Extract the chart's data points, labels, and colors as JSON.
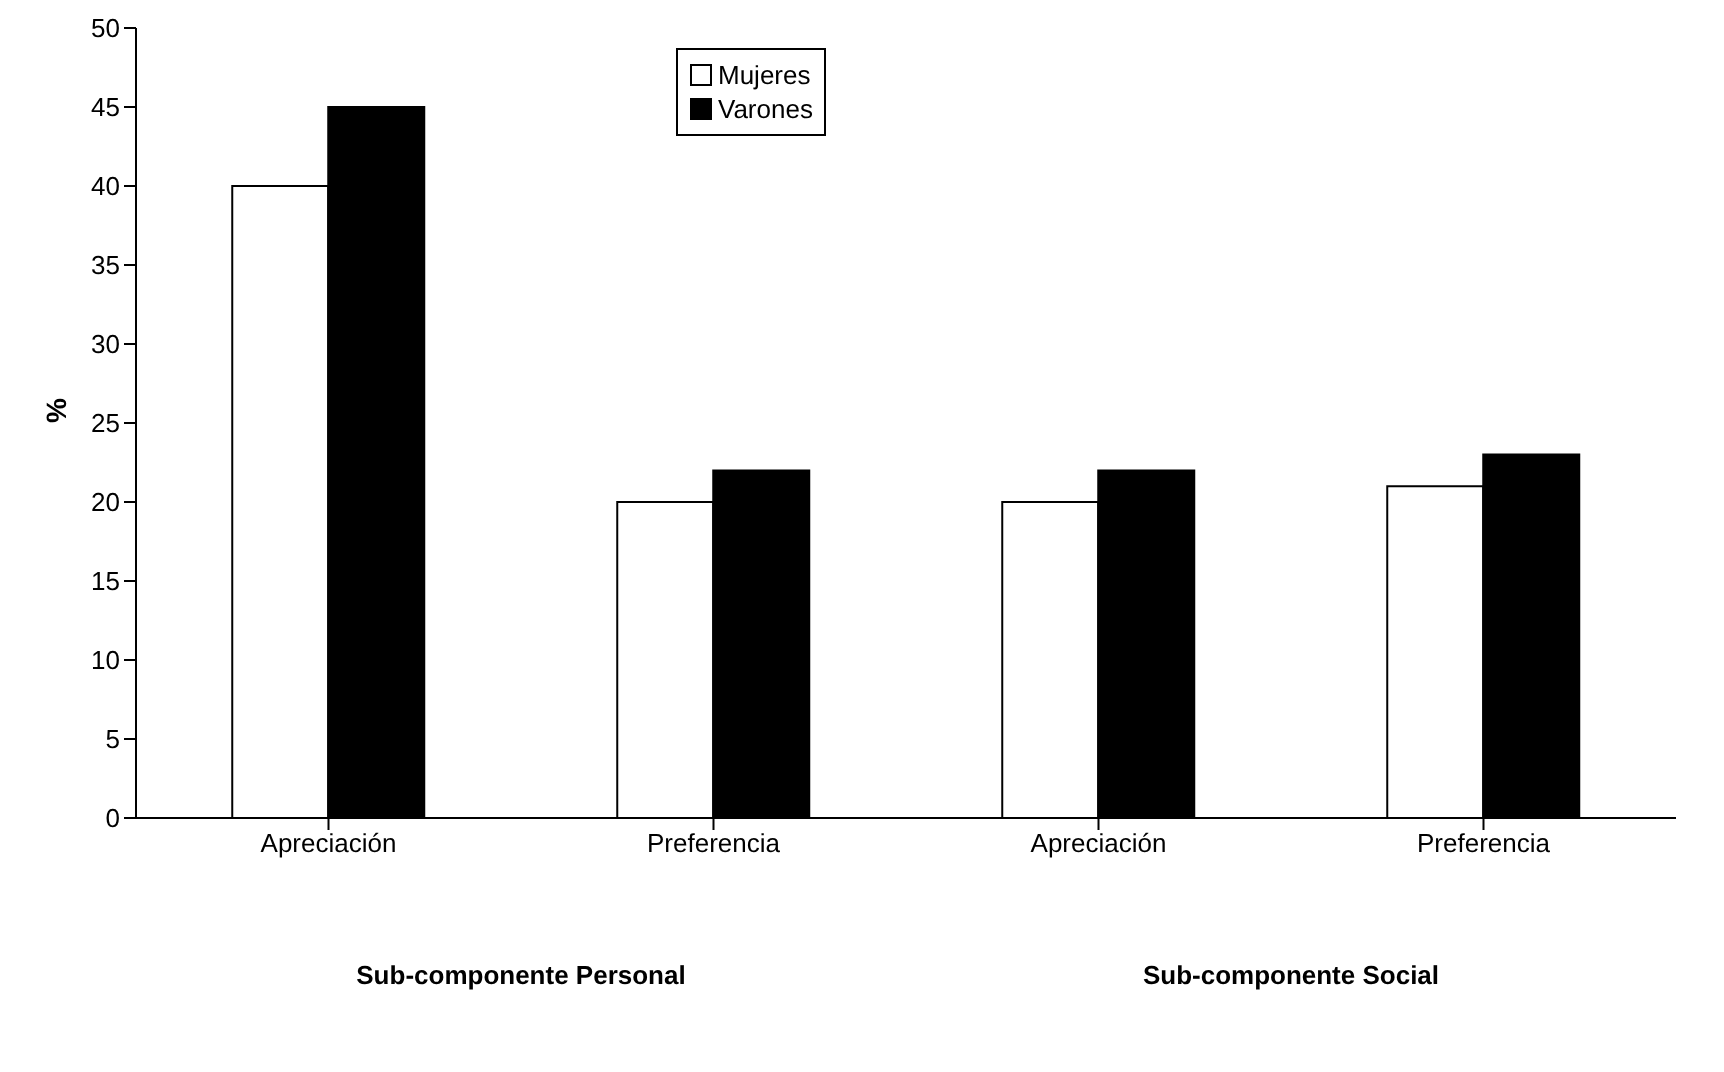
{
  "chart_data": {
    "type": "bar",
    "ylabel": "%",
    "categories": [
      "Apreciación",
      "Preferencia",
      "Apreciación",
      "Preferencia"
    ],
    "series": [
      {
        "name": "Mujeres",
        "color": "#ffffff",
        "values": [
          40,
          20,
          20,
          21
        ]
      },
      {
        "name": "Varones",
        "color": "#000000",
        "values": [
          45,
          22,
          22,
          23
        ]
      }
    ],
    "ylim": [
      0,
      50
    ],
    "yticks": [
      0,
      5,
      10,
      15,
      20,
      25,
      30,
      35,
      40,
      45,
      50
    ],
    "grid": false,
    "legend": "top",
    "annotations": [
      "Sub-componente Personal",
      "Sub-componente Social"
    ]
  }
}
